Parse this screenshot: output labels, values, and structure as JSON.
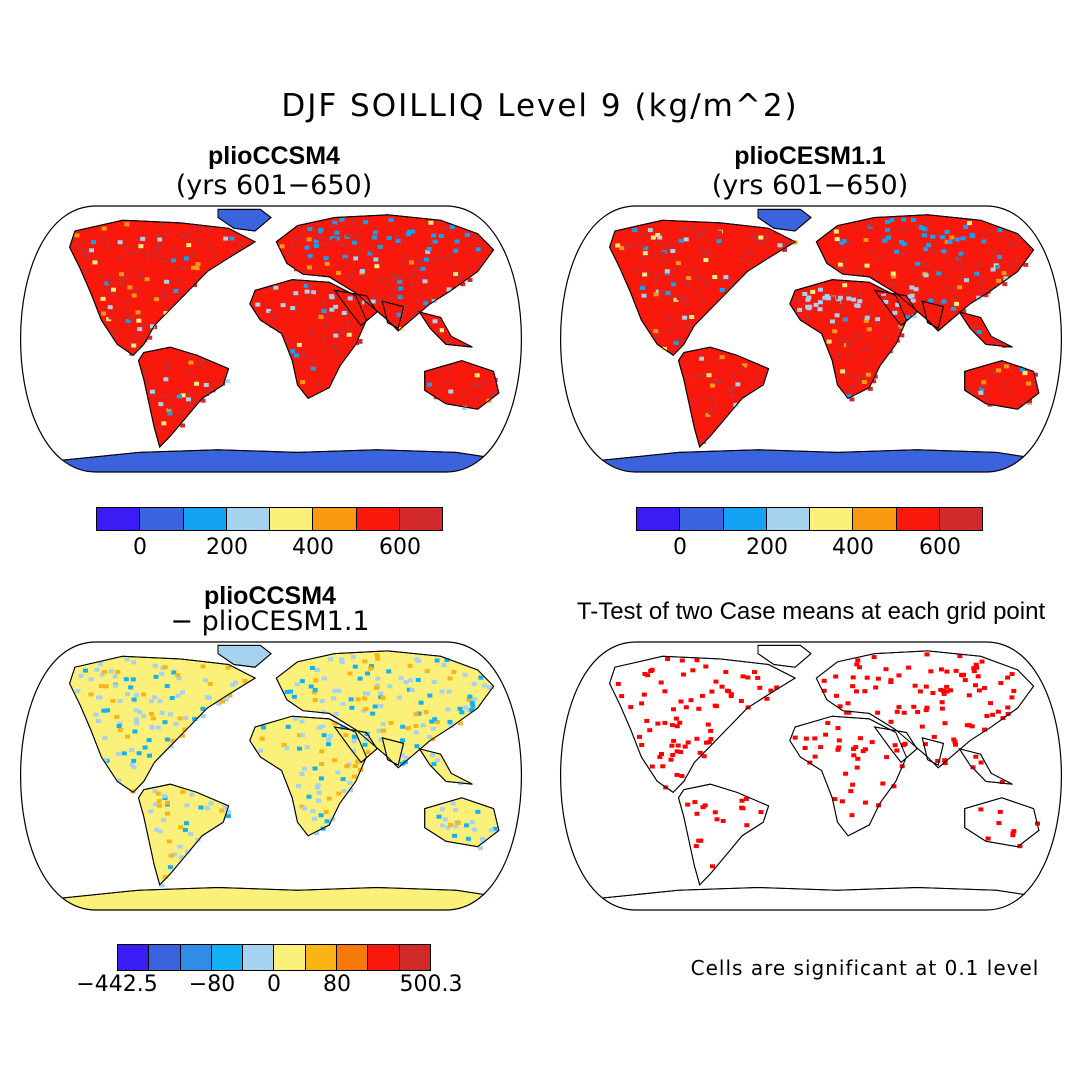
{
  "title": "DJF SOILLIQ Level 9 (kg/m^2)",
  "colors": {
    "levels_abs": [
      "#3a1cf5",
      "#3a63dd",
      "#13a2f4",
      "#a5d2ee",
      "#fbf07a",
      "#fb9a11",
      "#f8180c",
      "#d22a2a"
    ],
    "levels_diff": [
      "#3a1cf5",
      "#3a63dd",
      "#2f8de8",
      "#13b1f4",
      "#a5d2ee",
      "#fbf07a",
      "#fbb416",
      "#f8780c",
      "#f8180c",
      "#d22a2a"
    ],
    "land_base": "#e33a1a",
    "antarctica": "#3a63dd",
    "significant": "#ff0000"
  },
  "chart_data": [
    {
      "type": "heatmap",
      "title": "plioCCSM4",
      "subtitle": "(yrs 601−650)",
      "colorbar_ticks": [
        "0",
        "200",
        "400",
        "600"
      ]
    },
    {
      "type": "heatmap",
      "title": "plioCESM1.1",
      "subtitle": "(yrs 601−650)",
      "colorbar_ticks": [
        "0",
        "200",
        "400",
        "600"
      ]
    },
    {
      "type": "heatmap",
      "title": "plioCCSM4",
      "subtitle": "− plioCESM1.1",
      "colorbar_ticks": [
        "−442.5",
        "−80",
        "0",
        "80",
        "500.3"
      ]
    },
    {
      "type": "heatmap",
      "title": "T-Test of two Case means at each grid point",
      "note": "Cells are significant at 0.1 level"
    }
  ]
}
